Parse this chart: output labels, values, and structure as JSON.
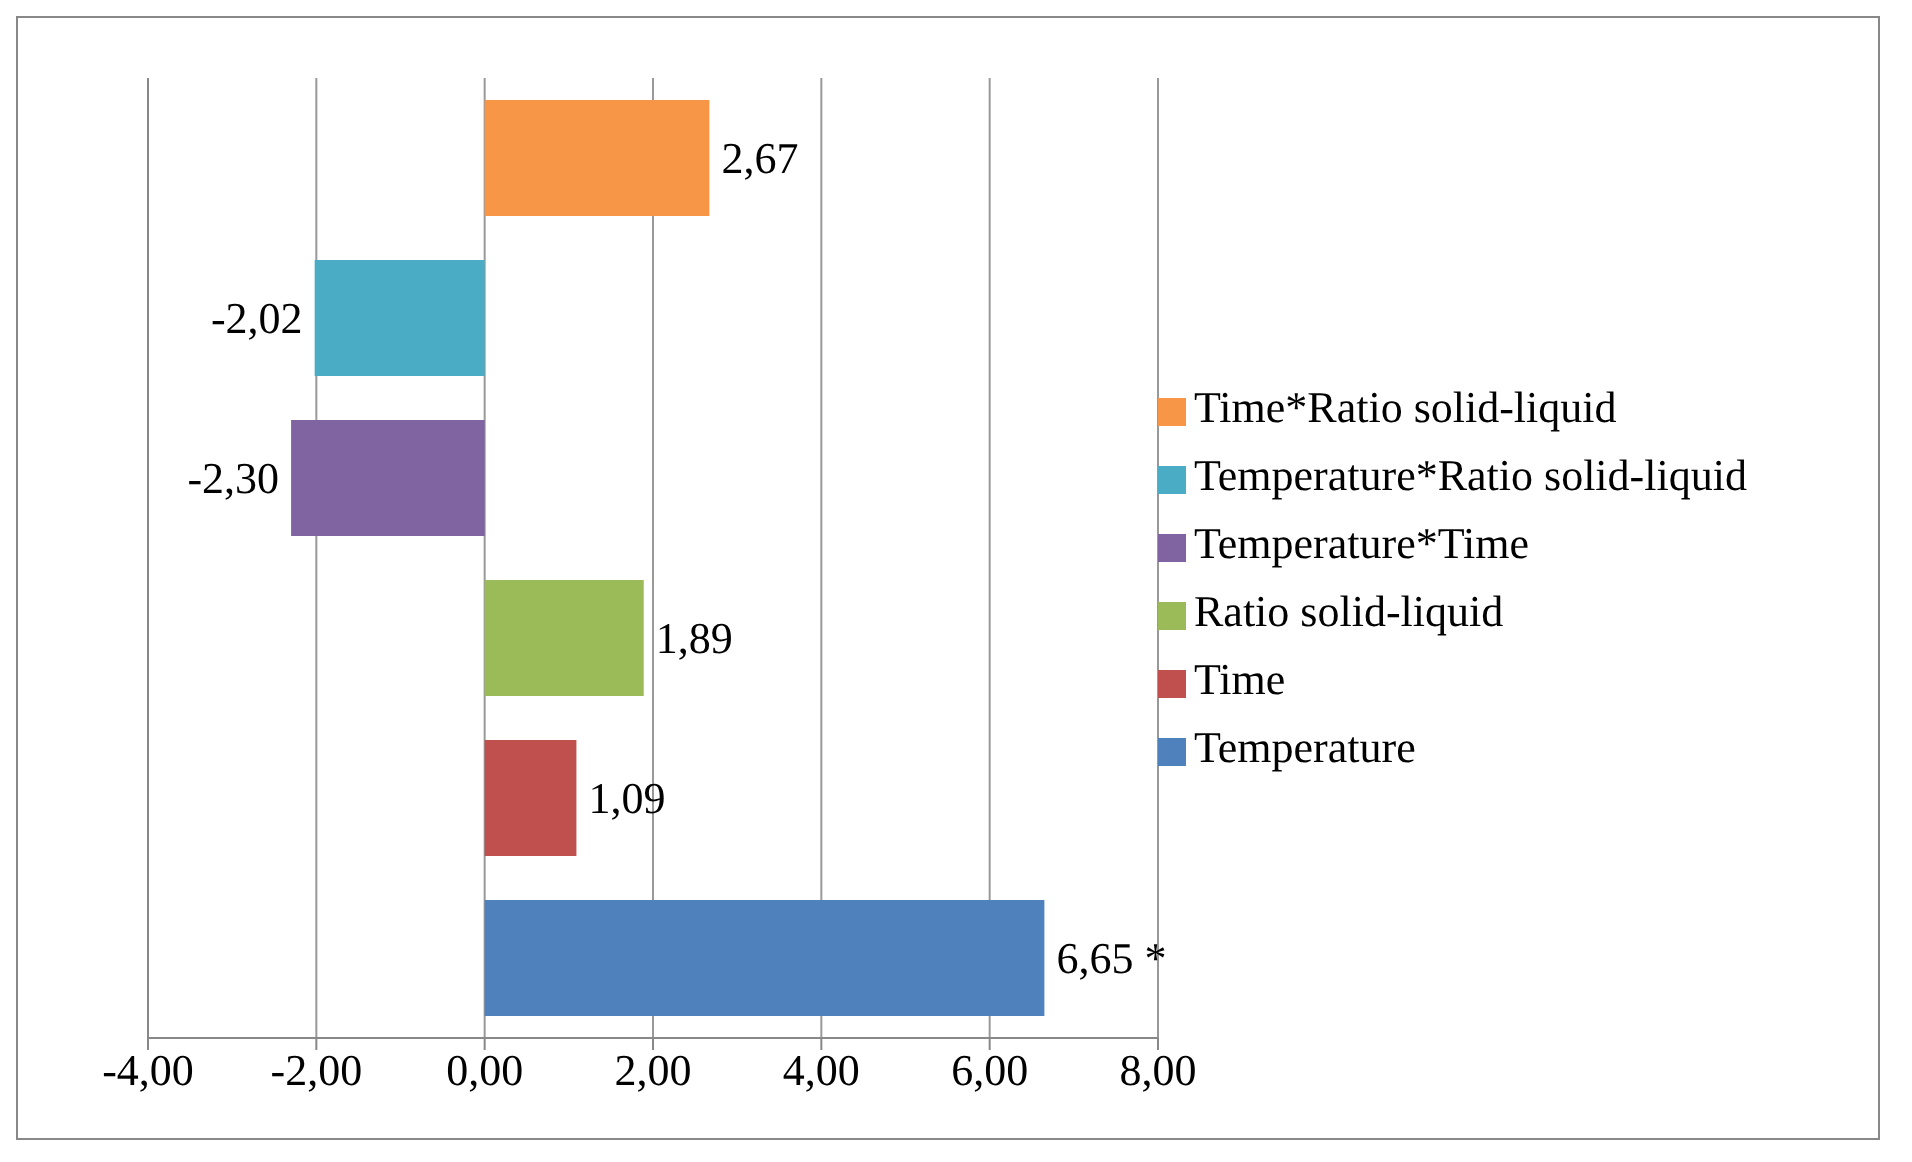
{
  "chart_data": {
    "type": "bar",
    "orientation": "horizontal",
    "stacked": true,
    "categories": [
      null,
      null,
      null,
      null,
      null,
      null
    ],
    "series": [
      {
        "name": "Time*Ratio solid-liquid",
        "color": "#f79646",
        "values": [
          2.67,
          null,
          null,
          null,
          null,
          null
        ],
        "value_labels": [
          "2,67",
          null,
          null,
          null,
          null,
          null
        ]
      },
      {
        "name": "Temperature*Ratio solid-liquid",
        "color": "#4bacc6",
        "values": [
          null,
          -2.02,
          null,
          null,
          null,
          null
        ],
        "value_labels": [
          null,
          "-2,02",
          null,
          null,
          null,
          null
        ]
      },
      {
        "name": "Temperature*Time",
        "color": "#8064a2",
        "values": [
          null,
          null,
          -2.3,
          null,
          null,
          null
        ],
        "value_labels": [
          null,
          null,
          "-2,30",
          null,
          null,
          null
        ]
      },
      {
        "name": "Ratio solid-liquid",
        "color": "#9bbb59",
        "values": [
          null,
          null,
          null,
          1.89,
          null,
          null
        ],
        "value_labels": [
          null,
          null,
          null,
          "1,89",
          null,
          null
        ]
      },
      {
        "name": "Time",
        "color": "#c0504d",
        "values": [
          null,
          null,
          null,
          null,
          1.09,
          null
        ],
        "value_labels": [
          null,
          null,
          null,
          null,
          "1,09",
          null
        ]
      },
      {
        "name": "Temperature",
        "color": "#4f81bd",
        "values": [
          null,
          null,
          null,
          null,
          null,
          6.65
        ],
        "value_labels": [
          null,
          null,
          null,
          null,
          null,
          "6,65 *"
        ]
      }
    ],
    "xlim": [
      -4,
      8
    ],
    "xticks": [
      {
        "value": -4,
        "label": "-4,00"
      },
      {
        "value": -2,
        "label": "-2,00"
      },
      {
        "value": 0,
        "label": "0,00"
      },
      {
        "value": 2,
        "label": "2,00"
      },
      {
        "value": 4,
        "label": "4,00"
      },
      {
        "value": 6,
        "label": "6,00"
      },
      {
        "value": 8,
        "label": "8,00"
      }
    ],
    "grid": "x",
    "legend": "right"
  }
}
